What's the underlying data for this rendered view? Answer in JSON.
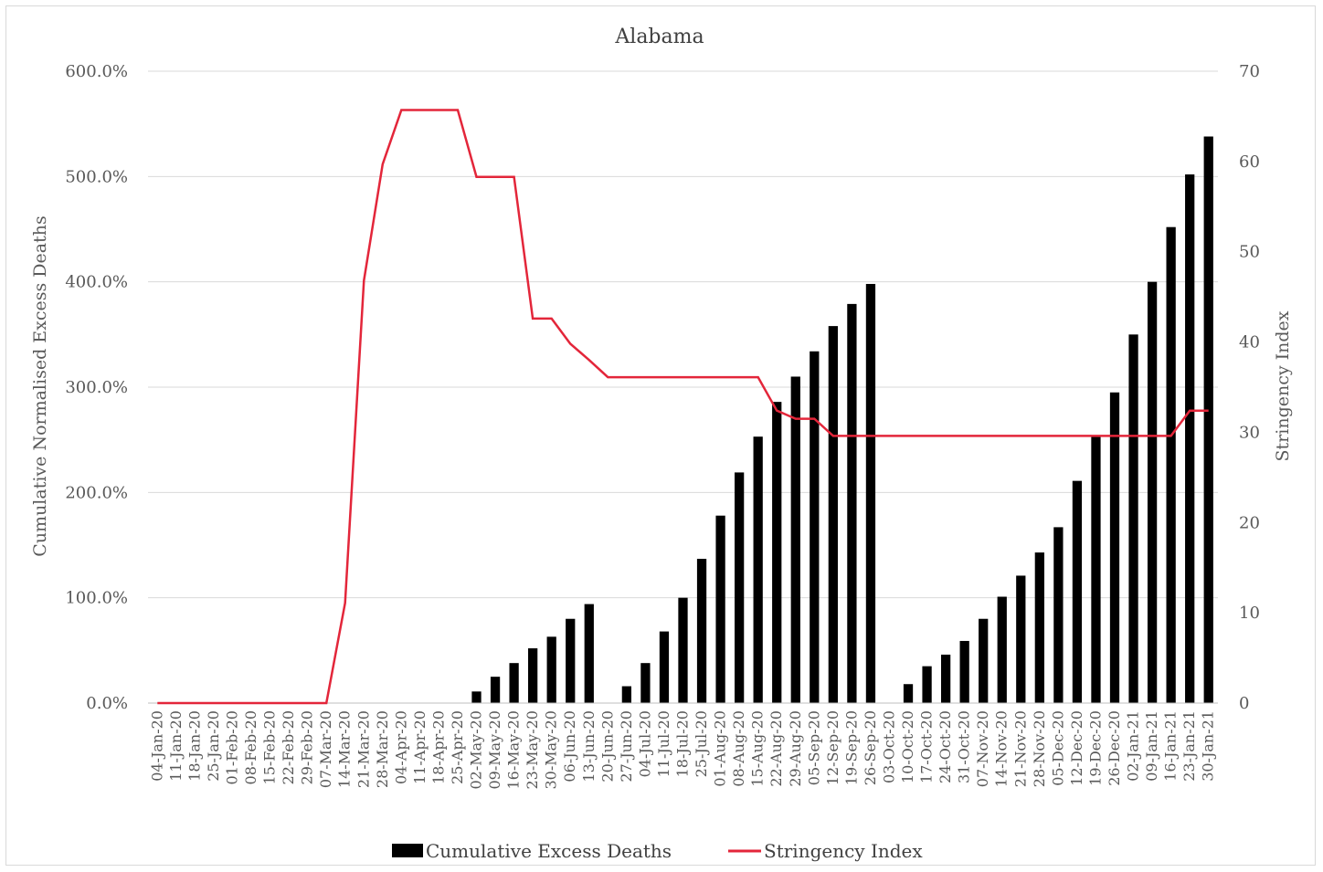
{
  "chart_data": {
    "type": "bar+line",
    "title": "Alabama",
    "ylabel_left": "Cumulative Normalised Excess Deaths",
    "ylabel_right": "Stringency Index",
    "ylim_left": [
      0,
      600
    ],
    "ylim_right": [
      0,
      70
    ],
    "yticks_left": [
      "0.0%",
      "100.0%",
      "200.0%",
      "300.0%",
      "400.0%",
      "500.0%",
      "600.0%"
    ],
    "yticks_right": [
      "0",
      "10",
      "20",
      "30",
      "40",
      "50",
      "60",
      "70"
    ],
    "grid": "horizontal",
    "legend_position": "bottom",
    "categories": [
      "04-Jan-20",
      "11-Jan-20",
      "18-Jan-20",
      "25-Jan-20",
      "01-Feb-20",
      "08-Feb-20",
      "15-Feb-20",
      "22-Feb-20",
      "29-Feb-20",
      "07-Mar-20",
      "14-Mar-20",
      "21-Mar-20",
      "28-Mar-20",
      "04-Apr-20",
      "11-Apr-20",
      "18-Apr-20",
      "25-Apr-20",
      "02-May-20",
      "09-May-20",
      "16-May-20",
      "23-May-20",
      "30-May-20",
      "06-Jun-20",
      "13-Jun-20",
      "20-Jun-20",
      "27-Jun-20",
      "04-Jul-20",
      "11-Jul-20",
      "18-Jul-20",
      "25-Jul-20",
      "01-Aug-20",
      "08-Aug-20",
      "15-Aug-20",
      "22-Aug-20",
      "29-Aug-20",
      "05-Sep-20",
      "12-Sep-20",
      "19-Sep-20",
      "26-Sep-20",
      "03-Oct-20",
      "10-Oct-20",
      "17-Oct-20",
      "24-Oct-20",
      "31-Oct-20",
      "07-Nov-20",
      "14-Nov-20",
      "21-Nov-20",
      "28-Nov-20",
      "05-Dec-20",
      "12-Dec-20",
      "19-Dec-20",
      "26-Dec-20",
      "02-Jan-21",
      "09-Jan-21",
      "16-Jan-21",
      "23-Jan-21",
      "30-Jan-21"
    ],
    "series": [
      {
        "name": "Cumulative Excess Deaths",
        "type": "bar",
        "axis": "left",
        "color": "#000000",
        "values": [
          0,
          0,
          0,
          0,
          0,
          0,
          0,
          0,
          0,
          0,
          0,
          0,
          0,
          0,
          0,
          0,
          0,
          11,
          25,
          38,
          52,
          63,
          80,
          94,
          0,
          16,
          38,
          68,
          100,
          137,
          178,
          219,
          253,
          286,
          310,
          334,
          358,
          379,
          398,
          0,
          18,
          35,
          46,
          59,
          80,
          101,
          121,
          143,
          167,
          211,
          254,
          295,
          350,
          400,
          452,
          502,
          538
        ]
      },
      {
        "name": "Stringency Index",
        "type": "line",
        "axis": "right",
        "color": "#e3263a",
        "values": [
          0,
          0,
          0,
          0,
          0,
          0,
          0,
          0,
          0,
          0,
          11.1,
          46.8,
          59.7,
          65.7,
          65.7,
          65.7,
          65.7,
          58.3,
          58.3,
          58.3,
          42.6,
          42.6,
          39.8,
          38.0,
          36.1,
          36.1,
          36.1,
          36.1,
          36.1,
          36.1,
          36.1,
          36.1,
          36.1,
          32.4,
          31.5,
          31.5,
          29.6,
          29.6,
          29.6,
          29.6,
          29.6,
          29.6,
          29.6,
          29.6,
          29.6,
          29.6,
          29.6,
          29.6,
          29.6,
          29.6,
          29.6,
          29.6,
          29.6,
          29.6,
          29.6,
          32.4,
          32.4
        ]
      }
    ]
  }
}
